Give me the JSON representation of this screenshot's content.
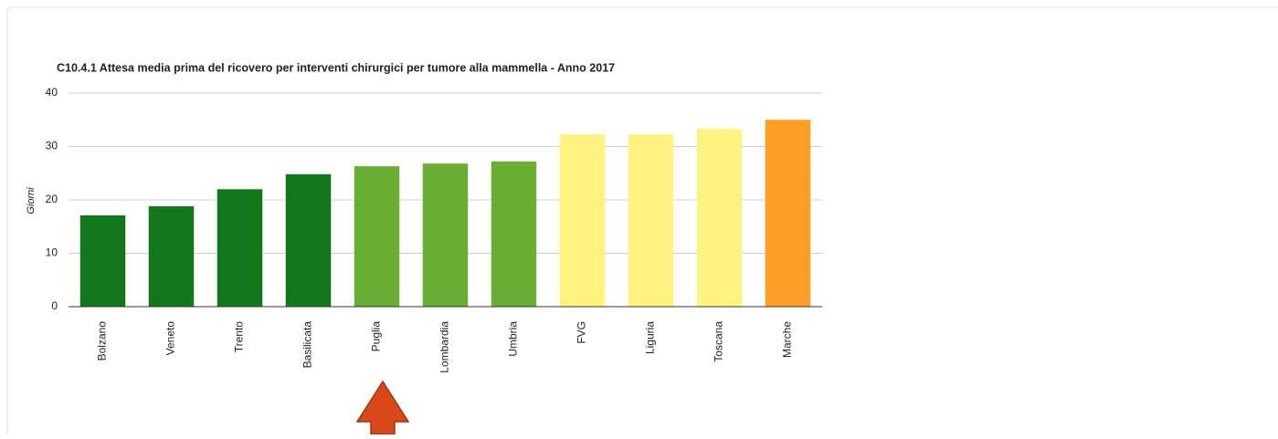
{
  "chart_data": {
    "type": "bar",
    "title": "C10.4.1 Attesa media prima del ricovero per interventi chirurgici per tumore alla mammella - Anno 2017",
    "y_label": "Giorni",
    "categories": [
      "Bolzano",
      "Veneto",
      "Trento",
      "Basilicata",
      "Puglia",
      "Lombardia",
      "Umbria",
      "FVG",
      "Liguria",
      "Toscana",
      "Marche"
    ],
    "values": [
      17.1,
      18.8,
      22.0,
      24.8,
      26.3,
      26.8,
      27.2,
      32.3,
      32.3,
      33.3,
      35.0
    ],
    "colors": [
      "#12771a",
      "#12771a",
      "#12771a",
      "#12771a",
      "#6aad35",
      "#6aad35",
      "#6aad35",
      "#fff27f",
      "#fff27f",
      "#fff27f",
      "#ff9e24"
    ],
    "ylim": [
      0,
      40
    ],
    "yticks": [
      0,
      10,
      20,
      30,
      40
    ],
    "grid": true
  }
}
